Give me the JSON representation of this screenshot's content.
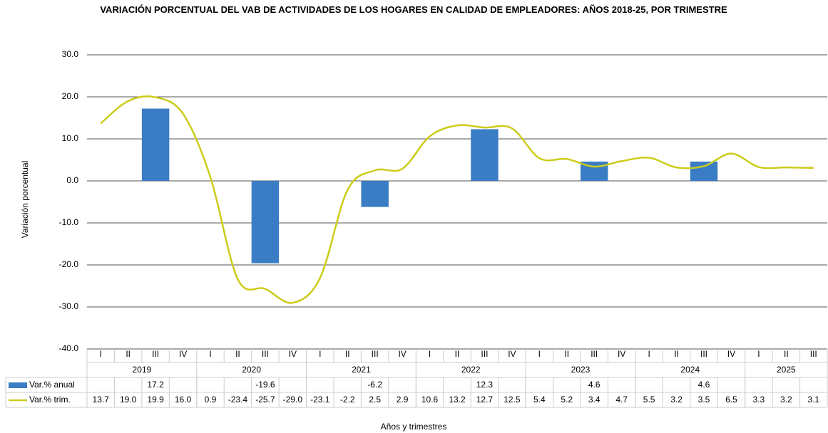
{
  "chart_data": {
    "type": "bar-line",
    "title": "VARIACIÓN PORCENTUAL DEL VAB DE ACTIVIDADES DE LOS HOGARES EN CALIDAD DE EMPLEADORES: AÑOS 2018-25, POR TRIMESTRE",
    "y_label": "Variación porcentual",
    "x_label": "Años y trimestres",
    "groups": [
      {
        "name": "2019",
        "categories": [
          "I",
          "II",
          "III",
          "IV"
        ]
      },
      {
        "name": "2020",
        "categories": [
          "I",
          "II",
          "III",
          "IV"
        ]
      },
      {
        "name": "2021",
        "categories": [
          "I",
          "II",
          "III",
          "IV"
        ]
      },
      {
        "name": "2022",
        "categories": [
          "I",
          "II",
          "III",
          "IV"
        ]
      },
      {
        "name": "2023",
        "categories": [
          "I",
          "II",
          "III",
          "IV"
        ]
      },
      {
        "name": "2024",
        "categories": [
          "I",
          "II",
          "III",
          "IV"
        ]
      },
      {
        "name": "2025",
        "categories": [
          "I",
          "II",
          "III"
        ]
      }
    ],
    "series": [
      {
        "name": "Var.% anual",
        "kind": "bar",
        "color": "#3a7dc4",
        "values": [
          null,
          null,
          17.2,
          null,
          null,
          null,
          -19.6,
          null,
          null,
          null,
          -6.2,
          null,
          null,
          null,
          12.3,
          null,
          null,
          null,
          4.6,
          null,
          null,
          null,
          4.6,
          null,
          null,
          null,
          null
        ],
        "value_labels": [
          null,
          null,
          "17.2",
          null,
          null,
          null,
          "-19.6",
          null,
          null,
          null,
          "-6.2",
          null,
          null,
          null,
          "12.3",
          null,
          null,
          null,
          "4.6",
          null,
          null,
          null,
          "4.6",
          null,
          null,
          null,
          null
        ]
      },
      {
        "name": "Var.% trim.",
        "kind": "line",
        "color": "#cccc1a",
        "values": [
          13.7,
          19.0,
          19.9,
          16.0,
          0.9,
          -23.4,
          -25.7,
          -29.0,
          -23.1,
          -2.2,
          2.5,
          2.9,
          10.6,
          13.2,
          12.7,
          12.5,
          5.4,
          5.2,
          3.4,
          4.7,
          5.5,
          3.2,
          3.5,
          6.5,
          3.3,
          3.2,
          3.1
        ],
        "value_labels": [
          "13.7",
          "19.0",
          "19.9",
          "16.0",
          "0.9",
          "-23.4",
          "-25.7",
          "-29.0",
          "-23.1",
          "-2.2",
          "2.5",
          "2.9",
          "10.6",
          "13.2",
          "12.7",
          "12.5",
          "5.4",
          "5.2",
          "3.4",
          "4.7",
          "5.5",
          "3.2",
          "3.5",
          "6.5",
          "3.3",
          "3.2",
          "3.1"
        ]
      }
    ],
    "ylim": [
      -40,
      30
    ],
    "yticks": [
      {
        "value": -40,
        "label": "-40.0"
      },
      {
        "value": -30,
        "label": "-30.0"
      },
      {
        "value": -20,
        "label": "-20.0"
      },
      {
        "value": -10,
        "label": "-10.0"
      },
      {
        "value": 0,
        "label": "0.0"
      },
      {
        "value": 10,
        "label": "10.0"
      },
      {
        "value": 20,
        "label": "20.0"
      },
      {
        "value": 30,
        "label": "30.0"
      }
    ],
    "grid": true
  }
}
